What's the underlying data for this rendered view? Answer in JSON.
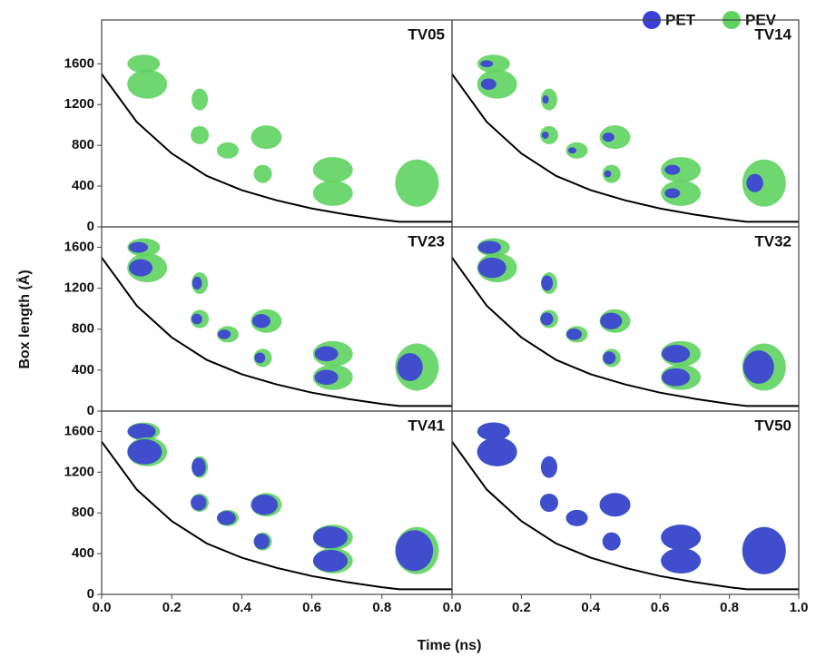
{
  "figure": {
    "x_label": "Time (ns)",
    "y_label": "Box length (Å)",
    "legend": [
      {
        "name": "PET",
        "color": "#3b3fd8"
      },
      {
        "name": "PEV",
        "color": "#5fd35f"
      }
    ]
  },
  "chart_data": [
    {
      "type": "line",
      "title": "TV05",
      "x": [
        0,
        0.1,
        0.2,
        0.3,
        0.4,
        0.5,
        0.6,
        0.7,
        0.8,
        0.85,
        0.9,
        1.0
      ],
      "values": [
        1500,
        1030,
        720,
        500,
        360,
        260,
        180,
        120,
        70,
        50,
        50,
        50
      ],
      "color": "#000000",
      "xlim": [
        0,
        1.0
      ],
      "ylim": [
        0,
        2030
      ],
      "yticks": [
        0,
        400,
        800,
        1200,
        1600
      ]
    },
    {
      "type": "line",
      "title": "TV14",
      "x": [
        0,
        0.1,
        0.2,
        0.3,
        0.4,
        0.5,
        0.6,
        0.7,
        0.8,
        0.85,
        0.9,
        1.0
      ],
      "values": [
        1500,
        1030,
        720,
        500,
        360,
        260,
        180,
        120,
        70,
        50,
        50,
        50
      ],
      "color": "#000000",
      "xlim": [
        0,
        1.0
      ],
      "ylim": [
        0,
        2030
      ]
    },
    {
      "type": "line",
      "title": "TV23",
      "x": [
        0,
        0.1,
        0.2,
        0.3,
        0.4,
        0.5,
        0.6,
        0.7,
        0.8,
        0.85,
        0.9,
        1.0
      ],
      "values": [
        1500,
        1030,
        720,
        500,
        360,
        260,
        180,
        120,
        70,
        50,
        50,
        50
      ],
      "color": "#000000",
      "xlim": [
        0,
        1.0
      ],
      "ylim": [
        0,
        1800
      ],
      "yticks": [
        0,
        400,
        800,
        1200,
        1600
      ]
    },
    {
      "type": "line",
      "title": "TV32",
      "x": [
        0,
        0.1,
        0.2,
        0.3,
        0.4,
        0.5,
        0.6,
        0.7,
        0.8,
        0.85,
        0.9,
        1.0
      ],
      "values": [
        1500,
        1030,
        720,
        500,
        360,
        260,
        180,
        120,
        70,
        50,
        50,
        50
      ],
      "color": "#000000",
      "xlim": [
        0,
        1.0
      ],
      "ylim": [
        0,
        1800
      ]
    },
    {
      "type": "line",
      "title": "TV41",
      "x": [
        0,
        0.1,
        0.2,
        0.3,
        0.4,
        0.5,
        0.6,
        0.7,
        0.8,
        0.85,
        0.9,
        1.0
      ],
      "values": [
        1500,
        1030,
        720,
        500,
        360,
        260,
        180,
        120,
        70,
        50,
        50,
        50
      ],
      "color": "#000000",
      "xlim": [
        0,
        1.0
      ],
      "ylim": [
        0,
        1800
      ],
      "yticks": [
        0,
        400,
        800,
        1200,
        1600
      ],
      "xticks": [
        {
          "value": 0,
          "label": "0.0"
        },
        {
          "value": 0.2,
          "label": "0.2"
        },
        {
          "value": 0.4,
          "label": "0.4"
        },
        {
          "value": 0.6,
          "label": "0.6"
        },
        {
          "value": 0.8,
          "label": "0.8"
        }
      ]
    },
    {
      "type": "line",
      "title": "TV50",
      "x": [
        0,
        0.1,
        0.2,
        0.3,
        0.4,
        0.5,
        0.6,
        0.7,
        0.8,
        0.85,
        0.9,
        1.0
      ],
      "values": [
        1500,
        1030,
        720,
        500,
        360,
        260,
        180,
        120,
        70,
        50,
        50,
        50
      ],
      "color": "#000000",
      "xlim": [
        0,
        1.0
      ],
      "ylim": [
        0,
        1800
      ],
      "xticks": [
        {
          "value": 0,
          "label": "0.0"
        },
        {
          "value": 0.2,
          "label": "0.2"
        },
        {
          "value": 0.4,
          "label": "0.4"
        },
        {
          "value": 0.6,
          "label": "0.6"
        },
        {
          "value": 0.8,
          "label": "0.8"
        },
        {
          "value": 1.0,
          "label": "1.0"
        }
      ]
    }
  ]
}
